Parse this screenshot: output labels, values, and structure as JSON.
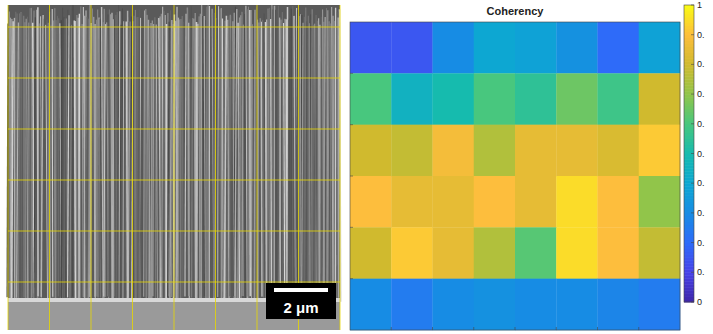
{
  "image": {
    "scale_bar": "2 μm"
  },
  "chart_data": {
    "type": "heatmap",
    "title": "Coherency",
    "cells": [
      [
        0.15,
        0.15,
        0.3,
        0.4,
        0.38,
        0.32,
        0.2,
        0.38
      ],
      [
        0.6,
        0.45,
        0.5,
        0.6,
        0.55,
        0.65,
        0.58,
        0.8
      ],
      [
        0.8,
        0.78,
        0.88,
        0.75,
        0.85,
        0.85,
        0.82,
        0.92
      ],
      [
        0.9,
        0.85,
        0.85,
        0.9,
        0.85,
        0.95,
        0.9,
        0.7
      ],
      [
        0.8,
        0.92,
        0.85,
        0.75,
        0.62,
        0.95,
        0.9,
        0.78
      ],
      [
        0.3,
        0.25,
        0.3,
        0.32,
        0.3,
        0.3,
        0.28,
        0.25
      ]
    ],
    "colorbar": {
      "range": [
        0,
        1
      ],
      "ticks": [
        1,
        {
          "value": 0.9,
          "label": "0."
        },
        {
          "value": 0.8,
          "label": "0."
        },
        {
          "value": 0.7,
          "label": "0."
        },
        {
          "value": 0.6,
          "label": "0."
        },
        {
          "value": 0.5,
          "label": "0."
        },
        {
          "value": 0.4,
          "label": "0."
        },
        {
          "value": 0.3,
          "label": "0."
        },
        {
          "value": 0.2,
          "label": "0."
        },
        {
          "value": 0.1,
          "label": "0."
        },
        0
      ]
    }
  }
}
